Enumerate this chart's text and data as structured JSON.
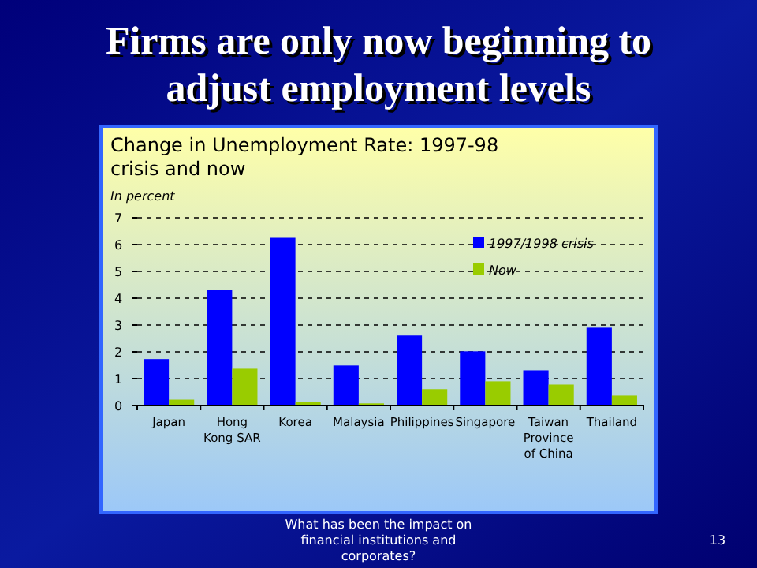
{
  "chart_data": {
    "type": "bar",
    "title": "Firms are only now beginning to adjust employment levels",
    "subtitle": "Change in Unemployment Rate: 1997-98 crisis and now",
    "ylabel": "In percent",
    "categories": [
      "Japan",
      "Hong Kong SAR",
      "Korea",
      "Malaysia",
      "Philippines",
      "Singapore",
      "Taiwan Province of China",
      "Thailand"
    ],
    "series": [
      {
        "name": "1997/1998 crisis",
        "color": "#0000ff",
        "values": [
          1.73,
          4.31,
          6.25,
          1.49,
          2.61,
          2.02,
          1.31,
          2.9
        ]
      },
      {
        "name": "Now",
        "color": "#99cc00",
        "values": [
          0.22,
          1.37,
          0.14,
          0.08,
          0.61,
          0.9,
          0.78,
          0.37
        ]
      }
    ],
    "ylim": [
      0,
      7
    ],
    "yticks": [
      0,
      1,
      2,
      3,
      4,
      5,
      6,
      7
    ],
    "grid": "y",
    "legend": "top right",
    "annotations": [
      "What has been the impact on financial institutions and corporates?",
      "13"
    ]
  }
}
